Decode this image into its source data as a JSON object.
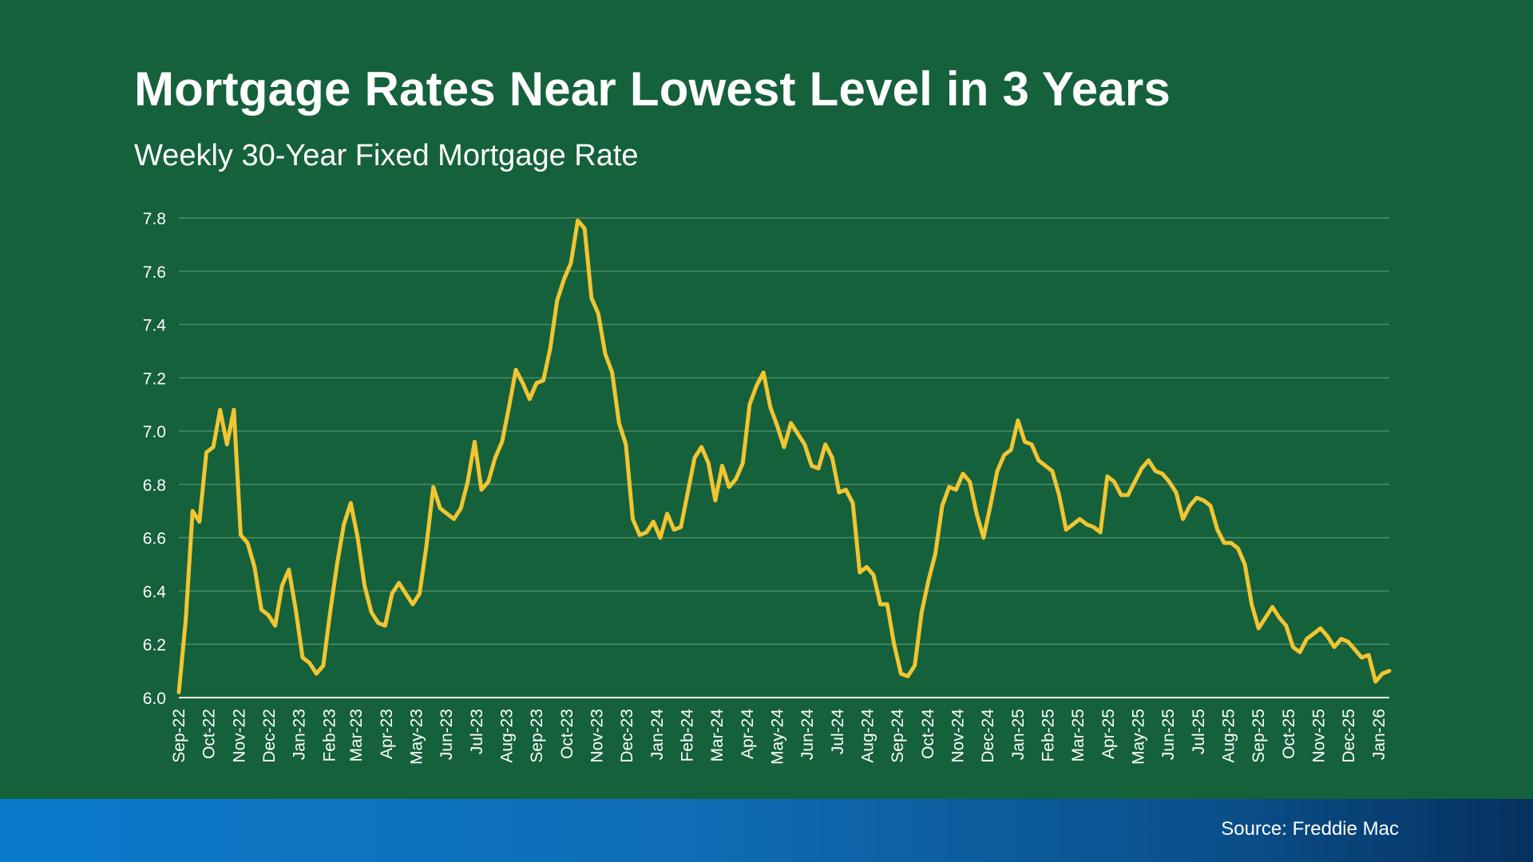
{
  "header": {
    "title": "Mortgage Rates Near Lowest Level in 3 Years",
    "subtitle": "Weekly 30-Year Fixed Mortgage Rate"
  },
  "footer": {
    "source": "Source: Freddie Mac"
  },
  "colors": {
    "background": "#15613b",
    "line": "#f2c531",
    "gridline": "#4e8a68",
    "footer_start": "#0a7bcb",
    "footer_end": "#06315e"
  },
  "chart_data": {
    "type": "line",
    "title": "Mortgage Rates Near Lowest Level in 3 Years",
    "subtitle": "Weekly 30-Year Fixed Mortgage Rate",
    "xlabel": "",
    "ylabel": "",
    "ylim": [
      6.0,
      7.8
    ],
    "yticks": [
      "6.0",
      "6.2",
      "6.4",
      "6.6",
      "6.8",
      "7.0",
      "7.2",
      "7.4",
      "7.6",
      "7.8"
    ],
    "grid": true,
    "xlim": [
      0,
      161
    ],
    "xticks": [
      {
        "label": "Sep-22",
        "week": 0
      },
      {
        "label": "Oct-22",
        "week": 4
      },
      {
        "label": "Nov-22",
        "week": 8
      },
      {
        "label": "Dec-22",
        "week": 12
      },
      {
        "label": "Jan-23",
        "week": 16
      },
      {
        "label": "Feb-23",
        "week": 20
      },
      {
        "label": "Mar-23",
        "week": 23.6
      },
      {
        "label": "Apr-23",
        "week": 27.6
      },
      {
        "label": "May-23",
        "week": 31.6
      },
      {
        "label": "Jun-23",
        "week": 35.6
      },
      {
        "label": "Jul-23",
        "week": 39.6
      },
      {
        "label": "Aug-23",
        "week": 43.6
      },
      {
        "label": "Sep-23",
        "week": 47.6
      },
      {
        "label": "Oct-23",
        "week": 51.6
      },
      {
        "label": "Nov-23",
        "week": 55.6
      },
      {
        "label": "Dec-23",
        "week": 59.6
      },
      {
        "label": "Jan-24",
        "week": 63.6
      },
      {
        "label": "Feb-24",
        "week": 67.6
      },
      {
        "label": "Mar-24",
        "week": 71.6
      },
      {
        "label": "Apr-24",
        "week": 75.6
      },
      {
        "label": "May-24",
        "week": 79.6
      },
      {
        "label": "Jun-24",
        "week": 83.6
      },
      {
        "label": "Jul-24",
        "week": 87.6
      },
      {
        "label": "Aug-24",
        "week": 91.6
      },
      {
        "label": "Sep-24",
        "week": 95.6
      },
      {
        "label": "Oct-24",
        "week": 99.6
      },
      {
        "label": "Nov-24",
        "week": 103.6
      },
      {
        "label": "Dec-24",
        "week": 107.6
      },
      {
        "label": "Jan-25",
        "week": 111.6
      },
      {
        "label": "Feb-25",
        "week": 115.6
      },
      {
        "label": "Mar-25",
        "week": 119.6
      },
      {
        "label": "Apr-25",
        "week": 123.6
      },
      {
        "label": "May-25",
        "week": 127.6
      },
      {
        "label": "Jun-25",
        "week": 131.6
      },
      {
        "label": "Jul-25",
        "week": 135.6
      },
      {
        "label": "Aug-25",
        "week": 139.6
      },
      {
        "label": "Sep-25",
        "week": 143.6
      },
      {
        "label": "Oct-25",
        "week": 147.6
      },
      {
        "label": "Nov-25",
        "week": 151.6
      },
      {
        "label": "Dec-25",
        "week": 155.6
      },
      {
        "label": "Jan-26",
        "week": 159.6
      }
    ],
    "series": [
      {
        "name": "30-Year Fixed Mortgage Rate",
        "values": [
          6.02,
          6.29,
          6.7,
          6.66,
          6.92,
          6.94,
          7.08,
          6.95,
          7.08,
          6.61,
          6.58,
          6.49,
          6.33,
          6.31,
          6.27,
          6.42,
          6.48,
          6.33,
          6.15,
          6.13,
          6.09,
          6.12,
          6.32,
          6.5,
          6.65,
          6.73,
          6.6,
          6.42,
          6.32,
          6.28,
          6.27,
          6.39,
          6.43,
          6.39,
          6.35,
          6.39,
          6.57,
          6.79,
          6.71,
          6.69,
          6.67,
          6.71,
          6.81,
          6.96,
          6.78,
          6.81,
          6.9,
          6.96,
          7.09,
          7.23,
          7.18,
          7.12,
          7.18,
          7.19,
          7.31,
          7.49,
          7.57,
          7.63,
          7.79,
          7.76,
          7.5,
          7.44,
          7.29,
          7.22,
          7.03,
          6.95,
          6.67,
          6.61,
          6.62,
          6.66,
          6.6,
          6.69,
          6.63,
          6.64,
          6.77,
          6.9,
          6.94,
          6.88,
          6.74,
          6.87,
          6.79,
          6.82,
          6.88,
          7.1,
          7.17,
          7.22,
          7.09,
          7.02,
          6.94,
          7.03,
          6.99,
          6.95,
          6.87,
          6.86,
          6.95,
          6.9,
          6.77,
          6.78,
          6.73,
          6.47,
          6.49,
          6.46,
          6.35,
          6.35,
          6.2,
          6.09,
          6.08,
          6.12,
          6.32,
          6.44,
          6.54,
          6.72,
          6.79,
          6.78,
          6.84,
          6.81,
          6.69,
          6.6,
          6.72,
          6.85,
          6.91,
          6.93,
          7.04,
          6.96,
          6.95,
          6.89,
          6.87,
          6.85,
          6.76,
          6.63,
          6.65,
          6.67,
          6.65,
          6.64,
          6.62,
          6.83,
          6.81,
          6.76,
          6.76,
          6.81,
          6.86,
          6.89,
          6.85,
          6.84,
          6.81,
          6.77,
          6.67,
          6.72,
          6.75,
          6.74,
          6.72,
          6.63,
          6.58,
          6.58,
          6.56,
          6.5,
          6.35,
          6.26,
          6.3,
          6.34,
          6.3,
          6.27,
          6.19,
          6.17,
          6.22,
          6.24,
          6.26,
          6.23,
          6.19,
          6.22,
          6.21,
          6.18,
          6.15,
          6.16,
          6.06,
          6.09,
          6.1
        ]
      }
    ]
  }
}
